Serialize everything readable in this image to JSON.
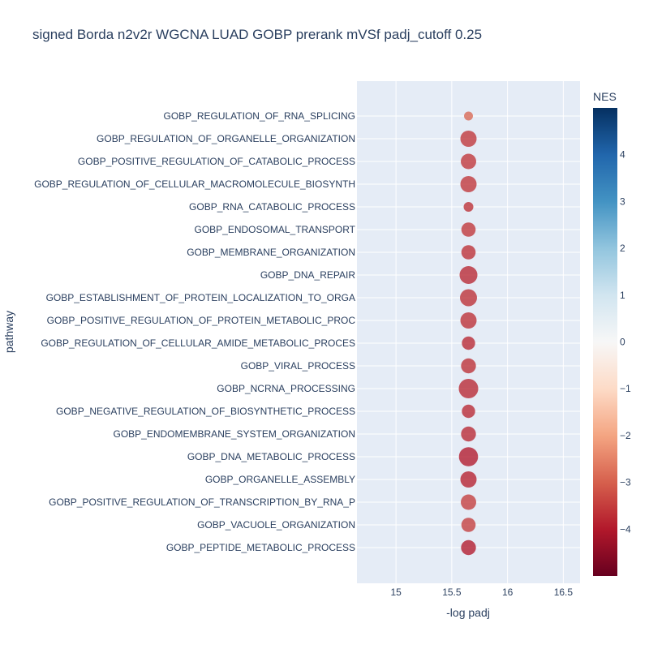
{
  "chart_data": {
    "type": "scatter",
    "title": "signed Borda n2v2r WGCNA LUAD GOBP prerank mVSf padj_cutoff 0.25",
    "xlabel": "-log padj",
    "ylabel": "pathway",
    "xlim": [
      14.65,
      16.65
    ],
    "xticks": [
      15,
      15.5,
      16,
      16.5
    ],
    "xtick_labels": [
      "15",
      "15.5",
      "16",
      "16.5"
    ],
    "grid": true,
    "colorbar": {
      "title": "NES",
      "range": [
        -5,
        5
      ],
      "ticks": [
        4,
        3,
        2,
        1,
        0,
        -1,
        -2,
        -3,
        -4
      ],
      "tick_labels": [
        "4",
        "3",
        "2",
        "1",
        "0",
        "−1",
        "−2",
        "−3",
        "−4"
      ],
      "colorscale": [
        "#67001f",
        "#b2182b",
        "#d6604d",
        "#f4a582",
        "#fddbc7",
        "#f7f7f7",
        "#d1e5f0",
        "#92c5de",
        "#4393c3",
        "#2166ac",
        "#053061"
      ]
    },
    "categories": [
      "GOBP_REGULATION_OF_RNA_SPLICING",
      "GOBP_REGULATION_OF_ORGANELLE_ORGANIZATION",
      "GOBP_POSITIVE_REGULATION_OF_CATABOLIC_PROCESS",
      "GOBP_REGULATION_OF_CELLULAR_MACROMOLECULE_BIOSYNTH",
      "GOBP_RNA_CATABOLIC_PROCESS",
      "GOBP_ENDOSOMAL_TRANSPORT",
      "GOBP_MEMBRANE_ORGANIZATION",
      "GOBP_DNA_REPAIR",
      "GOBP_ESTABLISHMENT_OF_PROTEIN_LOCALIZATION_TO_ORGA",
      "GOBP_POSITIVE_REGULATION_OF_PROTEIN_METABOLIC_PROC",
      "GOBP_REGULATION_OF_CELLULAR_AMIDE_METABOLIC_PROCES",
      "GOBP_VIRAL_PROCESS",
      "GOBP_NCRNA_PROCESSING",
      "GOBP_NEGATIVE_REGULATION_OF_BIOSYNTHETIC_PROCESS",
      "GOBP_ENDOMEMBRANE_SYSTEM_ORGANIZATION",
      "GOBP_DNA_METABOLIC_PROCESS",
      "GOBP_ORGANELLE_ASSEMBLY",
      "GOBP_POSITIVE_REGULATION_OF_TRANSCRIPTION_BY_RNA_P",
      "GOBP_VACUOLE_ORGANIZATION",
      "GOBP_PEPTIDE_METABOLIC_PROCESS"
    ],
    "x": [
      15.65,
      15.65,
      15.65,
      15.65,
      15.65,
      15.65,
      15.65,
      15.65,
      15.65,
      15.65,
      15.65,
      15.65,
      15.65,
      15.65,
      15.65,
      15.65,
      15.65,
      15.65,
      15.65,
      15.65
    ],
    "nes": [
      -2.9,
      -3.6,
      -3.6,
      -3.6,
      -3.7,
      -3.6,
      -3.7,
      -3.8,
      -3.7,
      -3.7,
      -3.8,
      -3.7,
      -3.8,
      -3.8,
      -3.8,
      -4.0,
      -3.9,
      -3.5,
      -3.5,
      -4.0
    ],
    "size": [
      0.55,
      1.0,
      0.95,
      1.0,
      0.6,
      0.88,
      0.88,
      1.1,
      1.05,
      1.0,
      0.82,
      0.92,
      1.2,
      0.82,
      0.92,
      1.18,
      1.0,
      0.95,
      0.88,
      0.92
    ]
  }
}
